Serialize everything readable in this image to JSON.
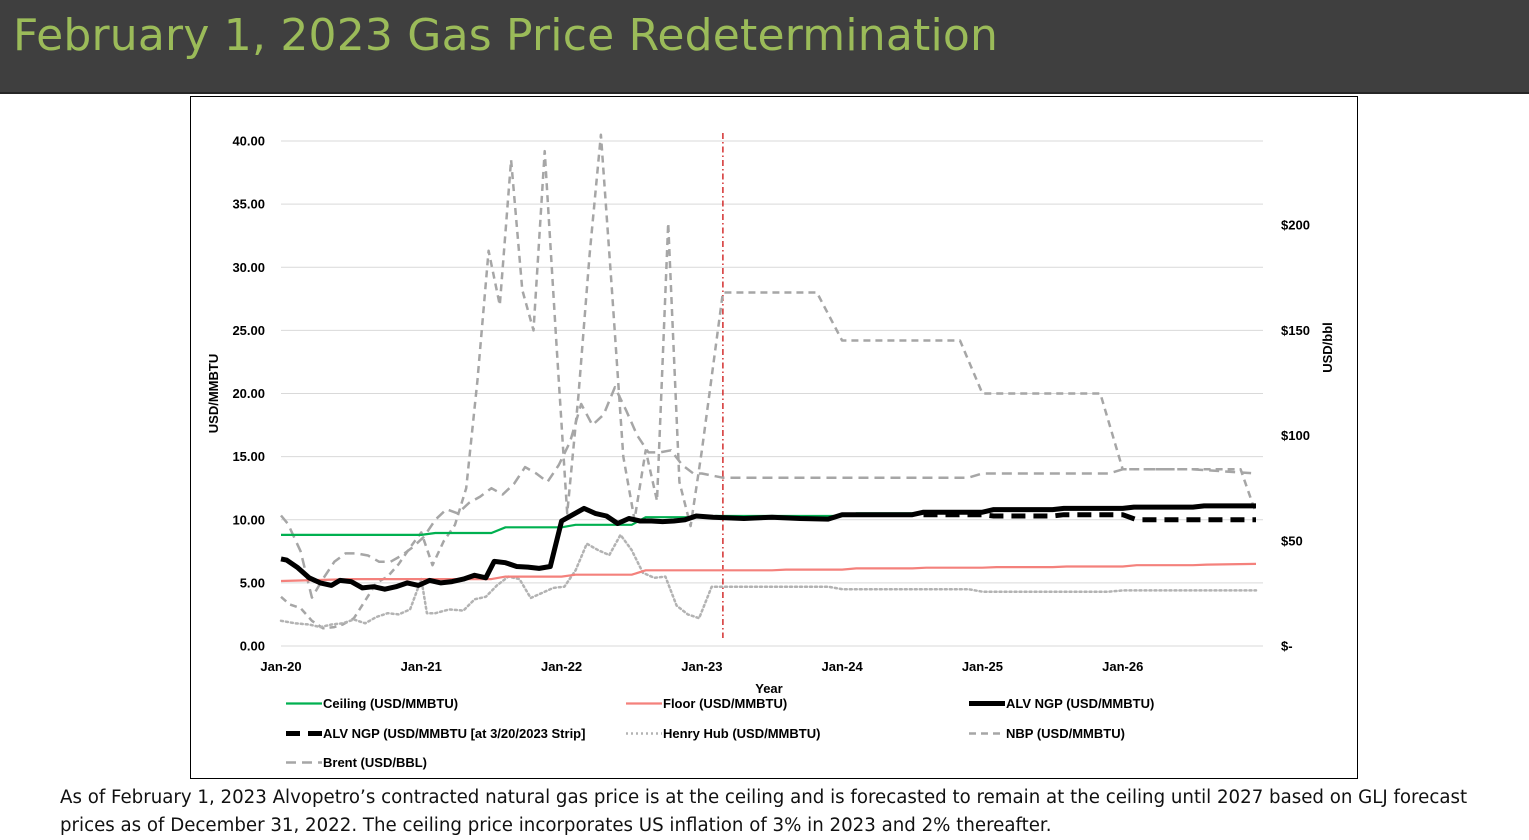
{
  "header": {
    "title": "February 1, 2023 Gas Price Redetermination"
  },
  "footnote": "As of February 1, 2023 Alvopetro’s contracted natural gas price is at the ceiling and is forecasted to remain at the ceiling until 2027 based on GLJ forecast prices as of December 31, 2022. The ceiling price incorporates US inflation of 3% in 2023 and 2% thereafter.",
  "colors": {
    "ceiling": "#00b050",
    "floor": "#f4817c",
    "alv": "#000000",
    "henry": "#b3b3b3",
    "nbp": "#a6a6a6",
    "brent": "#a6a6a6",
    "marker": "#d02020"
  },
  "chart_data": {
    "type": "line",
    "title": "",
    "xlabel": "Year",
    "ylabel": "USD/MMBTU",
    "y2label": "USD/bbl",
    "ylim": [
      0,
      40
    ],
    "y2lim": [
      0,
      240
    ],
    "x_ticks": [
      "Jan-20",
      "Jan-21",
      "Jan-22",
      "Jan-23",
      "Jan-24",
      "Jan-25",
      "Jan-26"
    ],
    "y_ticks": [
      "0.00",
      "5.00",
      "10.00",
      "15.00",
      "20.00",
      "25.00",
      "30.00",
      "35.00",
      "40.00"
    ],
    "y2_ticks": [
      {
        "v": 0,
        "label": "$-"
      },
      {
        "v": 50,
        "label": "$50"
      },
      {
        "v": 100,
        "label": "$100"
      },
      {
        "v": 150,
        "label": "$150"
      },
      {
        "v": 200,
        "label": "$200"
      }
    ],
    "vline_x": 2023.15,
    "legend": [
      {
        "key": "ceiling",
        "label": "Ceiling (USD/MMBTU)"
      },
      {
        "key": "floor",
        "label": "Floor (USD/MMBTU)"
      },
      {
        "key": "alv",
        "label": "ALV NGP  (USD/MMBTU)"
      },
      {
        "key": "alv_strip",
        "label": "ALV NGP  (USD/MMBTU [at 3/20/2023 Strip]"
      },
      {
        "key": "henry",
        "label": "Henry Hub (USD/MMBTU)"
      },
      {
        "key": "nbp",
        "label": "NBP (USD/MMBTU)"
      },
      {
        "key": "brent",
        "label": "Brent (USD/BBL)"
      }
    ],
    "series": [
      {
        "key": "ceiling",
        "name": "Ceiling (USD/MMBTU)",
        "axis": "left",
        "style": "solid",
        "width": 2.2,
        "x": [
          2020.0,
          2020.5,
          2021.0,
          2021.1,
          2021.5,
          2021.6,
          2022.0,
          2022.1,
          2022.5,
          2022.6,
          2023.0,
          2023.1,
          2024.0,
          2024.1,
          2024.6
        ],
        "y": [
          8.8,
          8.8,
          8.8,
          8.95,
          8.95,
          9.4,
          9.4,
          9.6,
          9.6,
          10.2,
          10.2,
          10.3,
          10.3,
          10.5,
          10.5
        ]
      },
      {
        "key": "floor",
        "name": "Floor (USD/MMBTU)",
        "axis": "left",
        "style": "solid",
        "width": 2.2,
        "x": [
          2020.0,
          2020.5,
          2021.0,
          2021.5,
          2021.6,
          2022.0,
          2022.1,
          2022.5,
          2022.6,
          2023.0,
          2023.5,
          2023.6,
          2024.0,
          2024.1,
          2024.5,
          2024.6,
          2025.0,
          2025.1,
          2025.5,
          2025.6,
          2026.0,
          2026.1,
          2026.5,
          2026.6,
          2026.95
        ],
        "y": [
          5.15,
          5.3,
          5.3,
          5.3,
          5.5,
          5.5,
          5.65,
          5.65,
          6.0,
          6.0,
          6.0,
          6.05,
          6.05,
          6.15,
          6.15,
          6.2,
          6.2,
          6.25,
          6.25,
          6.3,
          6.3,
          6.4,
          6.4,
          6.45,
          6.5
        ]
      },
      {
        "key": "alv",
        "name": "ALV NGP  (USD/MMBTU)",
        "axis": "left",
        "style": "solid",
        "width": 5,
        "x": [
          2020.0,
          2020.04,
          2020.12,
          2020.2,
          2020.28,
          2020.36,
          2020.42,
          2020.5,
          2020.58,
          2020.66,
          2020.74,
          2020.82,
          2020.9,
          2020.98,
          2021.06,
          2021.14,
          2021.22,
          2021.3,
          2021.38,
          2021.46,
          2021.52,
          2021.6,
          2021.68,
          2021.76,
          2021.84,
          2021.92,
          2022.0,
          2022.08,
          2022.16,
          2022.24,
          2022.32,
          2022.4,
          2022.48,
          2022.56,
          2022.64,
          2022.72,
          2022.8,
          2022.88,
          2022.96,
          2023.08,
          2023.3,
          2023.5,
          2023.7,
          2023.9,
          2024.0,
          2024.08,
          2024.5,
          2024.58,
          2025.0,
          2025.08,
          2025.5,
          2025.58,
          2026.0,
          2026.08,
          2026.5,
          2026.58,
          2026.95
        ],
        "y": [
          6.9,
          6.8,
          6.2,
          5.4,
          5.0,
          4.8,
          5.2,
          5.1,
          4.6,
          4.7,
          4.5,
          4.7,
          5.0,
          4.8,
          5.2,
          5.0,
          5.1,
          5.3,
          5.6,
          5.4,
          6.7,
          6.6,
          6.3,
          6.25,
          6.15,
          6.3,
          9.9,
          10.4,
          10.9,
          10.5,
          10.3,
          9.7,
          10.1,
          9.9,
          9.9,
          9.85,
          9.9,
          10.0,
          10.3,
          10.2,
          10.1,
          10.2,
          10.1,
          10.05,
          10.4,
          10.4,
          10.4,
          10.6,
          10.6,
          10.8,
          10.8,
          10.9,
          10.9,
          11.0,
          11.0,
          11.1,
          11.1
        ]
      },
      {
        "key": "alv_strip",
        "name": "ALV NGP  (USD/MMBTU [at 3/20/2023 Strip]",
        "axis": "left",
        "style": "dash",
        "width": 5,
        "x": [
          2024.58,
          2025.0,
          2025.08,
          2025.5,
          2025.58,
          2026.0,
          2026.1,
          2026.95
        ],
        "y": [
          10.4,
          10.4,
          10.3,
          10.3,
          10.4,
          10.4,
          10.0,
          10.0
        ]
      },
      {
        "key": "henry",
        "name": "Henry Hub (USD/MMBTU)",
        "axis": "left",
        "style": "dot",
        "width": 2.5,
        "x": [
          2020.0,
          2020.1,
          2020.2,
          2020.28,
          2020.36,
          2020.44,
          2020.52,
          2020.6,
          2020.68,
          2020.76,
          2020.84,
          2020.92,
          2021.0,
          2021.04,
          2021.1,
          2021.2,
          2021.3,
          2021.38,
          2021.46,
          2021.54,
          2021.62,
          2021.7,
          2021.78,
          2021.86,
          2021.94,
          2022.02,
          2022.1,
          2022.18,
          2022.26,
          2022.34,
          2022.42,
          2022.5,
          2022.58,
          2022.66,
          2022.74,
          2022.82,
          2022.9,
          2022.98,
          2023.07,
          2023.15,
          2023.5,
          2023.9,
          2024.0,
          2024.5,
          2024.9,
          2025.0,
          2025.5,
          2025.9,
          2026.0,
          2026.5,
          2026.95
        ],
        "y": [
          2.0,
          1.8,
          1.7,
          1.5,
          1.7,
          1.8,
          2.1,
          1.8,
          2.3,
          2.6,
          2.5,
          2.9,
          5.3,
          2.6,
          2.6,
          2.9,
          2.8,
          3.7,
          3.9,
          4.8,
          5.5,
          5.3,
          3.8,
          4.2,
          4.6,
          4.7,
          6.0,
          8.1,
          7.6,
          7.2,
          8.8,
          7.6,
          5.8,
          5.4,
          5.5,
          3.2,
          2.5,
          2.2,
          4.7,
          4.7,
          4.7,
          4.7,
          4.5,
          4.5,
          4.5,
          4.3,
          4.3,
          4.3,
          4.4,
          4.4,
          4.4
        ]
      },
      {
        "key": "nbp",
        "name": "NBP (USD/MMBTU)",
        "axis": "left",
        "style": "dash",
        "width": 2.5,
        "x": [
          2020.0,
          2020.06,
          2020.14,
          2020.22,
          2020.3,
          2020.38,
          2020.44,
          2020.52,
          2020.6,
          2020.68,
          2020.76,
          2020.84,
          2020.92,
          2021.0,
          2021.08,
          2021.16,
          2021.24,
          2021.32,
          2021.4,
          2021.48,
          2021.56,
          2021.64,
          2021.72,
          2021.8,
          2021.88,
          2021.96,
          2022.04,
          2022.12,
          2022.2,
          2022.28,
          2022.36,
          2022.44,
          2022.52,
          2022.6,
          2022.68,
          2022.76,
          2022.84,
          2022.92,
          2023.0,
          2023.15,
          2023.5,
          2023.6,
          2023.82,
          2024.0,
          2024.6,
          2024.84,
          2025.0,
          2025.6,
          2025.84,
          2026.0,
          2026.8,
          2026.84,
          2026.95
        ],
        "y": [
          3.9,
          3.3,
          3.0,
          2.0,
          1.4,
          1.5,
          1.7,
          2.2,
          3.6,
          5.0,
          5.5,
          6.5,
          7.8,
          9.0,
          6.4,
          8.3,
          9.6,
          12.5,
          21.0,
          31.3,
          27.0,
          38.5,
          28.2,
          25.0,
          39.2,
          24.5,
          10.5,
          19.8,
          31.0,
          40.5,
          28.0,
          15.0,
          10.0,
          15.5,
          11.5,
          33.5,
          13.0,
          9.5,
          15.5,
          28.0,
          28.0,
          28.0,
          28.0,
          24.2,
          24.2,
          24.2,
          20.0,
          20.0,
          20.0,
          14.0,
          14.0,
          14.0,
          10.5
        ]
      },
      {
        "key": "brent",
        "name": "Brent (USD/BBL)",
        "axis": "right",
        "style": "longdash",
        "width": 2.5,
        "x": [
          2020.0,
          2020.05,
          2020.14,
          2020.22,
          2020.3,
          2020.38,
          2020.46,
          2020.54,
          2020.62,
          2020.7,
          2020.78,
          2020.86,
          2020.94,
          2021.02,
          2021.1,
          2021.18,
          2021.26,
          2021.34,
          2021.42,
          2021.5,
          2021.58,
          2021.66,
          2021.74,
          2021.82,
          2021.9,
          2021.98,
          2022.06,
          2022.14,
          2022.22,
          2022.3,
          2022.38,
          2022.46,
          2022.54,
          2022.62,
          2022.7,
          2022.78,
          2022.86,
          2022.94,
          2023.0,
          2023.15,
          2023.9,
          2024.0,
          2024.9,
          2025.0,
          2025.9,
          2026.0,
          2026.5,
          2026.95
        ],
        "y": [
          62,
          58,
          45,
          23,
          32,
          40,
          44,
          44,
          43,
          40,
          40,
          43,
          47,
          52,
          60,
          65,
          63,
          68,
          71,
          75,
          72,
          77,
          85,
          82,
          78,
          86,
          97,
          115,
          105,
          110,
          123,
          112,
          100,
          92,
          92,
          93,
          86,
          82,
          82,
          80,
          80,
          80,
          80,
          82,
          82,
          84,
          84,
          82
        ]
      }
    ]
  }
}
